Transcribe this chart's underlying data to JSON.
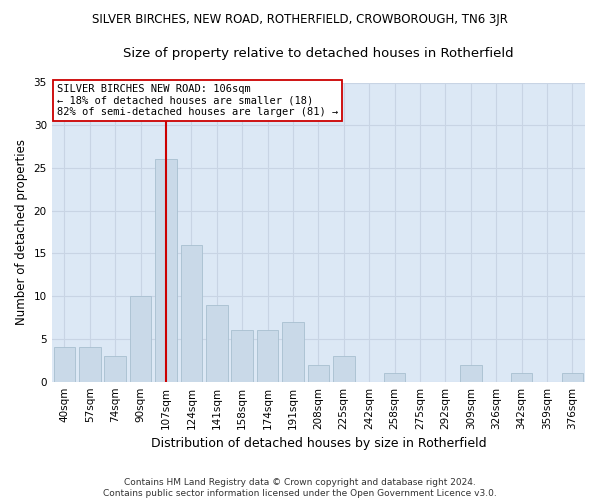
{
  "title": "SILVER BIRCHES, NEW ROAD, ROTHERFIELD, CROWBOROUGH, TN6 3JR",
  "subtitle": "Size of property relative to detached houses in Rotherfield",
  "xlabel": "Distribution of detached houses by size in Rotherfield",
  "ylabel": "Number of detached properties",
  "categories": [
    "40sqm",
    "57sqm",
    "74sqm",
    "90sqm",
    "107sqm",
    "124sqm",
    "141sqm",
    "158sqm",
    "174sqm",
    "191sqm",
    "208sqm",
    "225sqm",
    "242sqm",
    "258sqm",
    "275sqm",
    "292sqm",
    "309sqm",
    "326sqm",
    "342sqm",
    "359sqm",
    "376sqm"
  ],
  "values": [
    4,
    4,
    3,
    10,
    26,
    16,
    9,
    6,
    6,
    7,
    2,
    3,
    0,
    1,
    0,
    0,
    2,
    0,
    1,
    0,
    1
  ],
  "bar_color": "#c9d9e8",
  "bar_edge_color": "#a8bfd0",
  "vline_x_index": 4,
  "vline_color": "#cc0000",
  "annotation_text": "SILVER BIRCHES NEW ROAD: 106sqm\n← 18% of detached houses are smaller (18)\n82% of semi-detached houses are larger (81) →",
  "annotation_box_color": "#ffffff",
  "annotation_box_edge": "#cc0000",
  "ylim": [
    0,
    35
  ],
  "yticks": [
    0,
    5,
    10,
    15,
    20,
    25,
    30,
    35
  ],
  "grid_color": "#c8d4e4",
  "background_color": "#dce8f5",
  "footer": "Contains HM Land Registry data © Crown copyright and database right 2024.\nContains public sector information licensed under the Open Government Licence v3.0.",
  "title_fontsize": 8.5,
  "subtitle_fontsize": 9.5,
  "xlabel_fontsize": 9,
  "ylabel_fontsize": 8.5,
  "tick_fontsize": 7.5,
  "footer_fontsize": 6.5
}
